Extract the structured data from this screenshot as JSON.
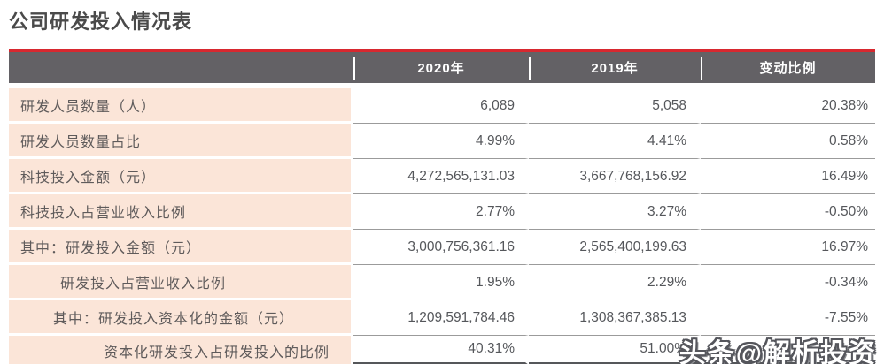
{
  "title": "公司研发投入情况表",
  "table": {
    "columns": [
      "2020年",
      "2019年",
      "变动比例"
    ],
    "rows": [
      {
        "label": "研发人员数量（人）",
        "y2020": "6,089",
        "y2019": "5,058",
        "change": "20.38%"
      },
      {
        "label": "研发人员数量占比",
        "y2020": "4.99%",
        "y2019": "4.41%",
        "change": "0.58%"
      },
      {
        "label": "科技投入金额（元）",
        "y2020": "4,272,565,131.03",
        "y2019": "3,667,768,156.92",
        "change": "16.49%"
      },
      {
        "label": "科技投入占营业收入比例",
        "y2020": "2.77%",
        "y2019": "3.27%",
        "change": "-0.50%"
      },
      {
        "label": "其中：研发投入金额（元）",
        "y2020": "3,000,756,361.16",
        "y2019": "2,565,400,199.63",
        "change": "16.97%"
      },
      {
        "label": "研发投入占营业收入比例",
        "y2020": "1.95%",
        "y2019": "2.29%",
        "change": "-0.34%"
      },
      {
        "label": "其中：研发投入资本化的金额（元）",
        "y2020": "1,209,591,784.46",
        "y2019": "1,308,367,385.13",
        "change": "-7.55%"
      },
      {
        "label": "资本化研发投入占研发投入的比例",
        "y2020": "40.31%",
        "y2019": "51.00%",
        "change": ""
      }
    ]
  },
  "watermark": "头条@解析投资",
  "colors": {
    "accent_red": "#d7282f",
    "header_gray": "#636165",
    "label_pink": "#fbe5d8"
  }
}
